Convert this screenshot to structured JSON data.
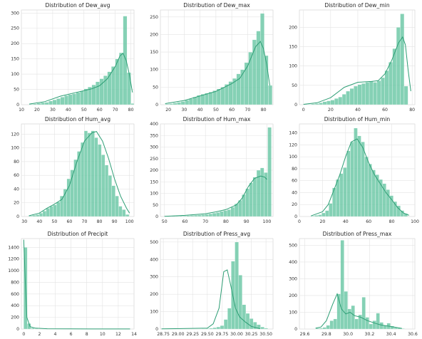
{
  "chart_data": [
    {
      "type": "bar",
      "title": "Distribution of Dew_avg",
      "x_ticks": [
        10,
        20,
        30,
        40,
        50,
        60,
        70,
        80
      ],
      "y_ticks": [
        0,
        50,
        100,
        150,
        200,
        250,
        300
      ],
      "xlim": [
        10,
        82
      ],
      "ylim": [
        0,
        310
      ],
      "bin_start": 15,
      "bin_width": 2.5,
      "values": [
        2,
        3,
        5,
        7,
        8,
        12,
        16,
        20,
        25,
        30,
        33,
        36,
        40,
        45,
        52,
        58,
        65,
        75,
        85,
        95,
        108,
        125,
        150,
        170,
        290,
        105,
        4
      ],
      "kde": [
        [
          15,
          2
        ],
        [
          25,
          10
        ],
        [
          35,
          28
        ],
        [
          45,
          40
        ],
        [
          55,
          52
        ],
        [
          60,
          62
        ],
        [
          65,
          85
        ],
        [
          70,
          125
        ],
        [
          73,
          160
        ],
        [
          75,
          168
        ],
        [
          77,
          145
        ],
        [
          79,
          100
        ],
        [
          81,
          40
        ]
      ]
    },
    {
      "type": "bar",
      "title": "Distribution of Dew_max",
      "x_ticks": [
        20,
        30,
        40,
        50,
        60,
        70,
        80
      ],
      "y_ticks": [
        0,
        50,
        100,
        150,
        200,
        250
      ],
      "xlim": [
        15,
        86
      ],
      "ylim": [
        0,
        270
      ],
      "bin_start": 18,
      "bin_width": 2.5,
      "values": [
        2,
        3,
        5,
        7,
        9,
        13,
        17,
        22,
        27,
        30,
        33,
        36,
        40,
        45,
        50,
        58,
        66,
        75,
        88,
        100,
        120,
        150,
        185,
        210,
        260,
        140,
        55
      ],
      "kde": [
        [
          18,
          3
        ],
        [
          30,
          12
        ],
        [
          40,
          25
        ],
        [
          50,
          38
        ],
        [
          60,
          60
        ],
        [
          65,
          75
        ],
        [
          70,
          110
        ],
        [
          75,
          165
        ],
        [
          78,
          180
        ],
        [
          80,
          160
        ],
        [
          82,
          115
        ],
        [
          84,
          55
        ]
      ]
    },
    {
      "type": "bar",
      "title": "Distribution of Dew_min",
      "x_ticks": [
        0,
        20,
        40,
        60,
        80
      ],
      "y_ticks": [
        0,
        50,
        100,
        150,
        200
      ],
      "xlim": [
        -3,
        82
      ],
      "ylim": [
        0,
        245
      ],
      "bin_start": 0,
      "bin_width": 2.85,
      "values": [
        1,
        1,
        2,
        3,
        5,
        8,
        10,
        12,
        16,
        20,
        27,
        35,
        42,
        48,
        52,
        55,
        58,
        60,
        58,
        62,
        70,
        88,
        110,
        145,
        200,
        235,
        48
      ],
      "kde": [
        [
          0,
          1
        ],
        [
          10,
          5
        ],
        [
          20,
          18
        ],
        [
          30,
          45
        ],
        [
          40,
          58
        ],
        [
          50,
          60
        ],
        [
          55,
          62
        ],
        [
          60,
          80
        ],
        [
          65,
          115
        ],
        [
          70,
          160
        ],
        [
          73,
          175
        ],
        [
          75,
          155
        ],
        [
          77,
          90
        ],
        [
          79,
          35
        ]
      ]
    },
    {
      "type": "bar",
      "title": "Distribution of Hum_avg",
      "x_ticks": [
        30,
        40,
        50,
        60,
        70,
        80,
        90,
        100
      ],
      "y_ticks": [
        0,
        20,
        40,
        60,
        80,
        100,
        120
      ],
      "xlim": [
        28,
        103
      ],
      "ylim": [
        0,
        135
      ],
      "bin_start": 33,
      "bin_width": 2.3,
      "values": [
        1,
        2,
        3,
        5,
        8,
        12,
        15,
        17,
        21,
        30,
        40,
        55,
        68,
        83,
        95,
        108,
        125,
        122,
        125,
        115,
        105,
        90,
        75,
        60,
        45,
        30,
        15,
        10,
        3
      ],
      "kde": [
        [
          33,
          1
        ],
        [
          40,
          5
        ],
        [
          45,
          12
        ],
        [
          50,
          18
        ],
        [
          55,
          25
        ],
        [
          60,
          45
        ],
        [
          65,
          80
        ],
        [
          70,
          110
        ],
        [
          75,
          122
        ],
        [
          78,
          124
        ],
        [
          82,
          110
        ],
        [
          86,
          85
        ],
        [
          90,
          55
        ],
        [
          94,
          30
        ],
        [
          98,
          12
        ],
        [
          100,
          5
        ]
      ]
    },
    {
      "type": "bar",
      "title": "Distribution of Hum_max",
      "x_ticks": [
        50,
        60,
        70,
        80,
        90,
        100
      ],
      "y_ticks": [
        0,
        50,
        100,
        150,
        200,
        250,
        300,
        350,
        400
      ],
      "xlim": [
        48,
        103
      ],
      "ylim": [
        0,
        400
      ],
      "bin_start": 50,
      "bin_width": 1.8,
      "values": [
        1,
        1,
        2,
        2,
        3,
        3,
        4,
        5,
        6,
        7,
        8,
        10,
        12,
        15,
        18,
        22,
        26,
        30,
        40,
        55,
        70,
        95,
        120,
        145,
        170,
        200,
        210,
        190,
        385
      ],
      "kde": [
        [
          50,
          1
        ],
        [
          60,
          5
        ],
        [
          70,
          12
        ],
        [
          75,
          20
        ],
        [
          80,
          30
        ],
        [
          85,
          50
        ],
        [
          88,
          80
        ],
        [
          91,
          130
        ],
        [
          94,
          165
        ],
        [
          97,
          175
        ],
        [
          99,
          170
        ],
        [
          100,
          160
        ]
      ]
    },
    {
      "type": "bar",
      "title": "Distribution of Hum_min",
      "x_ticks": [
        0,
        20,
        40,
        60,
        80,
        100
      ],
      "y_ticks": [
        0,
        20,
        40,
        60,
        80,
        100,
        120,
        140
      ],
      "xlim": [
        0,
        100
      ],
      "ylim": [
        0,
        155
      ],
      "bin_start": 10,
      "bin_width": 3.1,
      "values": [
        1,
        2,
        3,
        6,
        10,
        22,
        48,
        62,
        72,
        82,
        110,
        125,
        148,
        135,
        125,
        100,
        88,
        78,
        70,
        62,
        55,
        45,
        35,
        25,
        18,
        10,
        5
      ],
      "kde": [
        [
          10,
          1
        ],
        [
          20,
          8
        ],
        [
          25,
          20
        ],
        [
          30,
          45
        ],
        [
          35,
          70
        ],
        [
          40,
          100
        ],
        [
          45,
          125
        ],
        [
          50,
          130
        ],
        [
          55,
          115
        ],
        [
          60,
          90
        ],
        [
          65,
          70
        ],
        [
          70,
          55
        ],
        [
          75,
          40
        ],
        [
          80,
          28
        ],
        [
          85,
          15
        ],
        [
          90,
          6
        ],
        [
          95,
          2
        ]
      ]
    },
    {
      "type": "bar",
      "title": "Distribution of Precipit",
      "x_ticks": [
        0,
        2,
        4,
        6,
        8,
        10,
        12,
        14
      ],
      "y_ticks": [
        0,
        200,
        400,
        600,
        800,
        1000,
        1200,
        1400
      ],
      "xlim": [
        -0.3,
        14
      ],
      "ylim": [
        0,
        1550
      ],
      "bin_start": 0,
      "bin_width": 0.45,
      "values": [
        1400,
        95,
        18,
        7,
        4,
        3,
        2,
        1,
        1,
        1,
        1,
        1,
        1,
        1,
        1,
        1,
        1,
        1,
        1,
        1,
        1,
        1,
        1,
        1,
        1,
        1,
        1,
        1,
        1,
        1
      ],
      "kde": [
        [
          0,
          1530
        ],
        [
          0.2,
          800
        ],
        [
          0.4,
          200
        ],
        [
          0.8,
          40
        ],
        [
          1.5,
          15
        ],
        [
          3,
          5
        ],
        [
          6,
          2
        ],
        [
          13.5,
          1
        ]
      ]
    },
    {
      "type": "bar",
      "title": "Distribution of Press_avg",
      "x_ticks": [
        "28.75",
        "29.00",
        "29.25",
        "29.50",
        "29.75",
        "30.00",
        "30.25",
        "30.50"
      ],
      "y_ticks": [
        0,
        100,
        200,
        300,
        400,
        500
      ],
      "xlim": [
        28.7,
        30.62
      ],
      "ylim": [
        0,
        520
      ],
      "bin_start": 28.72,
      "bin_width": 0.0625,
      "values": [
        1,
        1,
        1,
        1,
        1,
        1,
        1,
        1,
        1,
        1,
        1,
        2,
        3,
        5,
        8,
        12,
        20,
        55,
        120,
        390,
        500,
        310,
        140,
        90,
        60,
        40,
        25,
        12,
        5
      ],
      "kde": [
        [
          28.72,
          1
        ],
        [
          29.5,
          5
        ],
        [
          29.6,
          30
        ],
        [
          29.7,
          120
        ],
        [
          29.78,
          330
        ],
        [
          29.84,
          340
        ],
        [
          29.9,
          250
        ],
        [
          29.98,
          120
        ],
        [
          30.05,
          70
        ],
        [
          30.15,
          40
        ],
        [
          30.25,
          15
        ],
        [
          30.4,
          2
        ]
      ]
    },
    {
      "type": "bar",
      "title": "Distribution of Press_max",
      "x_ticks": [
        "29.6",
        "29.8",
        "30.0",
        "30.2",
        "30.4",
        "30.6"
      ],
      "y_ticks": [
        0,
        100,
        200,
        300,
        400,
        500
      ],
      "xlim": [
        29.55,
        30.62
      ],
      "ylim": [
        0,
        540
      ],
      "bin_start": 29.7,
      "bin_width": 0.033,
      "values": [
        5,
        5,
        10,
        22,
        50,
        60,
        210,
        530,
        225,
        120,
        140,
        60,
        85,
        190,
        70,
        30,
        50,
        95,
        40,
        20,
        35,
        18,
        8,
        5,
        3
      ],
      "kde": [
        [
          29.7,
          5
        ],
        [
          29.75,
          12
        ],
        [
          29.8,
          50
        ],
        [
          29.86,
          150
        ],
        [
          29.9,
          210
        ],
        [
          29.94,
          120
        ],
        [
          29.98,
          90
        ],
        [
          30.02,
          100
        ],
        [
          30.06,
          80
        ],
        [
          30.12,
          70
        ],
        [
          30.18,
          50
        ],
        [
          30.25,
          35
        ],
        [
          30.3,
          25
        ],
        [
          30.4,
          15
        ],
        [
          30.5,
          4
        ]
      ]
    }
  ]
}
